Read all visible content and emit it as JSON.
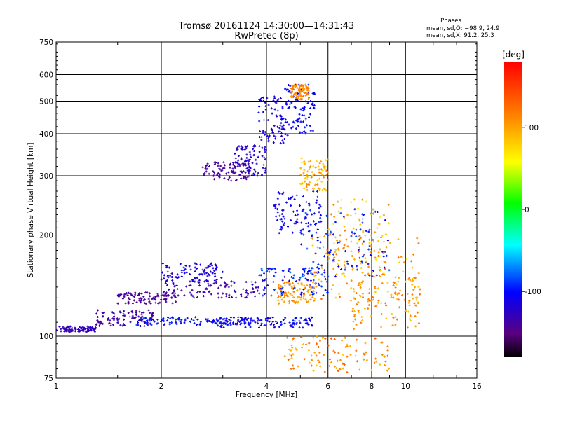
{
  "chart_data": {
    "type": "scatter",
    "title_line1": "Tromsø 20161124 14:30:00—14:31:43",
    "title_line2": "RwPretec (8p)",
    "xlabel": "Frequency [MHz]",
    "ylabel": "Stationary phase Virtual Height [km]",
    "x_scale": "log",
    "y_scale": "log",
    "xlim": [
      1,
      16
    ],
    "ylim": [
      75,
      750
    ],
    "x_ticks": [
      1,
      2,
      4,
      6,
      8,
      10,
      16
    ],
    "y_ticks": [
      75,
      100,
      200,
      300,
      400,
      500,
      600,
      750
    ],
    "grid": true,
    "phase_info": {
      "heading": "Phases",
      "line_o": "mean, sd,O: −98.9, 24.9",
      "line_x": "mean, sd,X:  91.2, 25.3"
    },
    "colorbar": {
      "label": "[deg]",
      "range": [
        -180,
        180
      ],
      "ticks": [
        100,
        0,
        -100
      ],
      "colormap": "rainbow"
    },
    "series": [
      {
        "name": "O",
        "clusters": [
          {
            "x": [
              1.0,
              1.3
            ],
            "y": [
              103,
              107
            ],
            "phase": [
              -115,
              -140
            ]
          },
          {
            "x": [
              1.3,
              1.9
            ],
            "y": [
              107,
              120
            ],
            "phase": [
              -125,
              -150
            ]
          },
          {
            "x": [
              1.7,
              3.8
            ],
            "y": [
              108,
              114
            ],
            "phase": [
              -85,
              -120
            ]
          },
          {
            "x": [
              2.8,
              5.5
            ],
            "y": [
              106,
              114
            ],
            "phase": [
              -90,
              -125
            ]
          },
          {
            "x": [
              1.5,
              2.2
            ],
            "y": [
              125,
              135
            ],
            "phase": [
              -135,
              -150
            ]
          },
          {
            "x": [
              2.0,
              3.8
            ],
            "y": [
              130,
              146
            ],
            "phase": [
              -125,
              -145
            ]
          },
          {
            "x": [
              2.0,
              3.0
            ],
            "y": [
              145,
              165
            ],
            "phase": [
              -100,
              -130
            ]
          },
          {
            "x": [
              3.8,
              6.0
            ],
            "y": [
              132,
              160
            ],
            "phase": [
              -75,
              -120
            ]
          },
          {
            "x": [
              2.6,
              3.6
            ],
            "y": [
              290,
              330
            ],
            "phase": [
              -130,
              -150
            ]
          },
          {
            "x": [
              3.2,
              4.0
            ],
            "y": [
              300,
              370
            ],
            "phase": [
              -110,
              -135
            ]
          },
          {
            "x": [
              3.8,
              4.6
            ],
            "y": [
              370,
              520
            ],
            "phase": [
              -105,
              -125
            ]
          },
          {
            "x": [
              4.2,
              5.8
            ],
            "y": [
              200,
              270
            ],
            "phase": [
              -95,
              -115
            ]
          },
          {
            "x": [
              4.4,
              5.5
            ],
            "y": [
              400,
              560
            ],
            "phase": [
              -95,
              -110
            ]
          },
          {
            "x": [
              5.0,
              9.0
            ],
            "y": [
              150,
              240
            ],
            "phase": [
              -80,
              -110
            ]
          }
        ]
      },
      {
        "name": "X",
        "clusters": [
          {
            "x": [
              5.0,
              6.0
            ],
            "y": [
              270,
              340
            ],
            "phase": [
              70,
              115
            ]
          },
          {
            "x": [
              4.3,
              5.5
            ],
            "y": [
              125,
              145
            ],
            "phase": [
              90,
              120
            ]
          },
          {
            "x": [
              5.4,
              11.0
            ],
            "y": [
              125,
              200
            ],
            "phase": [
              70,
              130
            ]
          },
          {
            "x": [
              6.0,
              9.0
            ],
            "y": [
              150,
              260
            ],
            "phase": [
              60,
              120
            ]
          },
          {
            "x": [
              7.0,
              11.0
            ],
            "y": [
              105,
              150
            ],
            "phase": [
              80,
              125
            ]
          },
          {
            "x": [
              4.5,
              9.0
            ],
            "y": [
              78,
              100
            ],
            "phase": [
              80,
              140
            ]
          },
          {
            "x": [
              4.7,
              5.3
            ],
            "y": [
              505,
              560
            ],
            "phase": [
              100,
              125
            ]
          }
        ]
      }
    ]
  }
}
